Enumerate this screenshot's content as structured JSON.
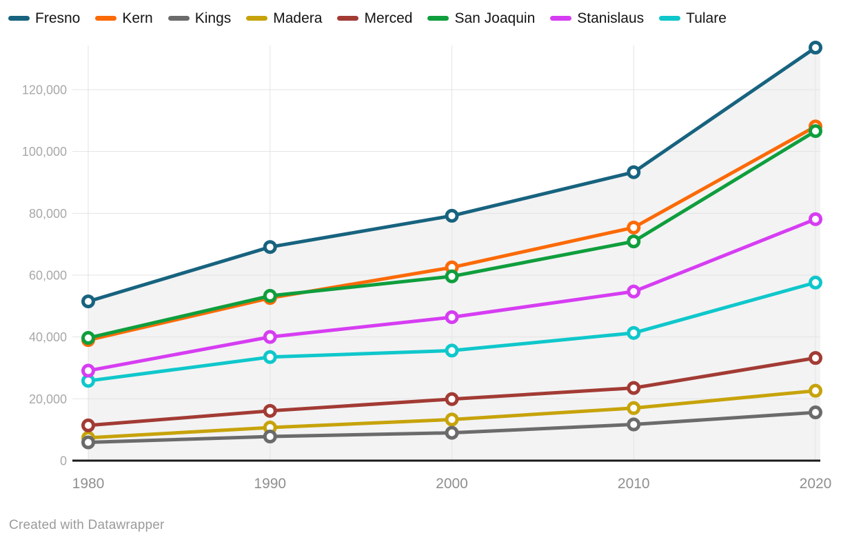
{
  "chart_data": {
    "type": "line",
    "x": [
      1980,
      1990,
      2000,
      2010,
      2020
    ],
    "x_tick_labels": [
      "1980",
      "1990",
      "2000",
      "2010",
      "2020"
    ],
    "y_ticks": [
      0,
      20000,
      40000,
      60000,
      80000,
      100000,
      120000
    ],
    "y_tick_labels": [
      "0",
      "20,000",
      "40,000",
      "60,000",
      "80,000",
      "100,000",
      "120,000"
    ],
    "ylim": [
      0,
      134000
    ],
    "grid": true,
    "legend_position": "top",
    "series": [
      {
        "name": "Fresno",
        "color": "#17637f",
        "values": [
          51500,
          69100,
          79200,
          93300,
          133600
        ]
      },
      {
        "name": "Kern",
        "color": "#fb6a07",
        "values": [
          39000,
          52600,
          62500,
          75400,
          108100
        ]
      },
      {
        "name": "Kings",
        "color": "#6b6b6b",
        "values": [
          5900,
          7800,
          9000,
          11700,
          15600
        ]
      },
      {
        "name": "Madera",
        "color": "#c7a30b",
        "values": [
          7400,
          10700,
          13300,
          17000,
          22600
        ]
      },
      {
        "name": "Merced",
        "color": "#a23b34",
        "values": [
          11400,
          16100,
          19900,
          23500,
          33200
        ]
      },
      {
        "name": "San Joaquin",
        "color": "#0f9e3d",
        "values": [
          39700,
          53300,
          59600,
          70900,
          106600
        ]
      },
      {
        "name": "Stanislaus",
        "color": "#d63df2",
        "values": [
          29100,
          40000,
          46400,
          54700,
          78100
        ]
      },
      {
        "name": "Tulare",
        "color": "#0fc7cb",
        "values": [
          25800,
          33500,
          35600,
          41300,
          57600
        ]
      }
    ],
    "area_fill_series": "Fresno",
    "area_fill_color": "#f3f3f3",
    "draw_order": [
      "Kern",
      "Madera",
      "Merced",
      "Tulare",
      "Kings",
      "San Joaquin",
      "Stanislaus",
      "Fresno"
    ]
  },
  "footer": {
    "credit": "Created with Datawrapper"
  }
}
